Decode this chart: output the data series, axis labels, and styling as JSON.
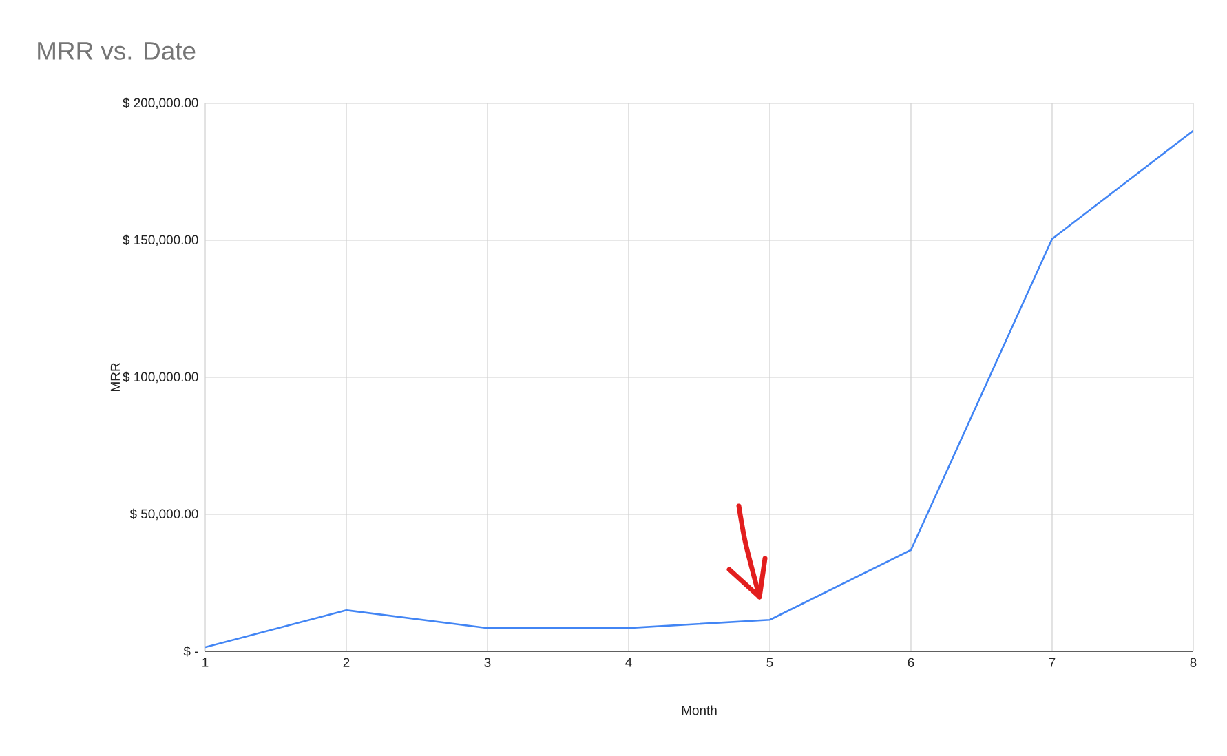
{
  "chart_data": {
    "type": "line",
    "title": "MRR vs. Date",
    "xlabel": "Month",
    "ylabel": "MRR",
    "x": [
      1,
      2,
      3,
      4,
      5,
      6,
      7,
      8
    ],
    "series": [
      {
        "color": "#4285f4",
        "values": [
          1500,
          15000,
          8500,
          8500,
          11500,
          37000,
          150500,
          190000
        ]
      }
    ],
    "xlim": [
      1,
      8
    ],
    "xticks": [
      1,
      2,
      3,
      4,
      5,
      6,
      7,
      8
    ],
    "ylim": [
      0,
      200000
    ],
    "yticks": [
      {
        "value": 0,
        "label": "$ -"
      },
      {
        "value": 50000,
        "label": "$ 50,000.00"
      },
      {
        "value": 100000,
        "label": "$ 100,000.00"
      },
      {
        "value": 150000,
        "label": "$ 150,000.00"
      },
      {
        "value": 200000,
        "label": "$ 200,000.00"
      }
    ],
    "grid": true,
    "legend": false,
    "marker": "none",
    "line_style": "solid"
  }
}
